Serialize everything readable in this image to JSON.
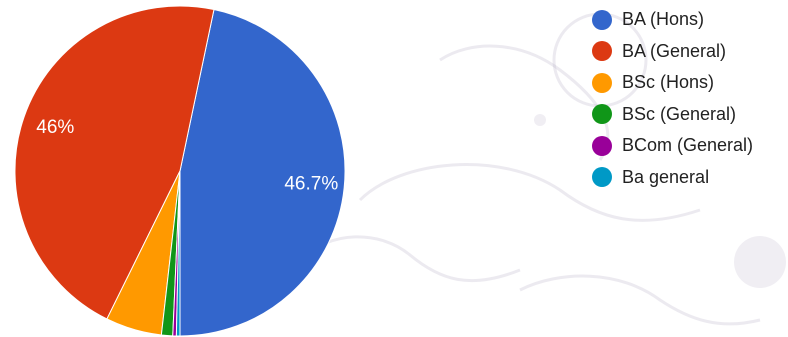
{
  "chart_data": {
    "type": "pie",
    "categories": [
      "BA (Hons)",
      "BA (General)",
      "BSc (Hons)",
      "BSc (General)",
      "BCom (General)",
      "Ba general"
    ],
    "values": [
      46.7,
      46.0,
      5.5,
      1.1,
      0.35,
      0.35
    ],
    "value_labels": [
      "46.7%",
      "46%",
      "",
      "",
      "",
      ""
    ],
    "colors": [
      "#3366cc",
      "#dc3912",
      "#ff9900",
      "#109618",
      "#990099",
      "#0099c6"
    ],
    "legend_position": "right"
  }
}
